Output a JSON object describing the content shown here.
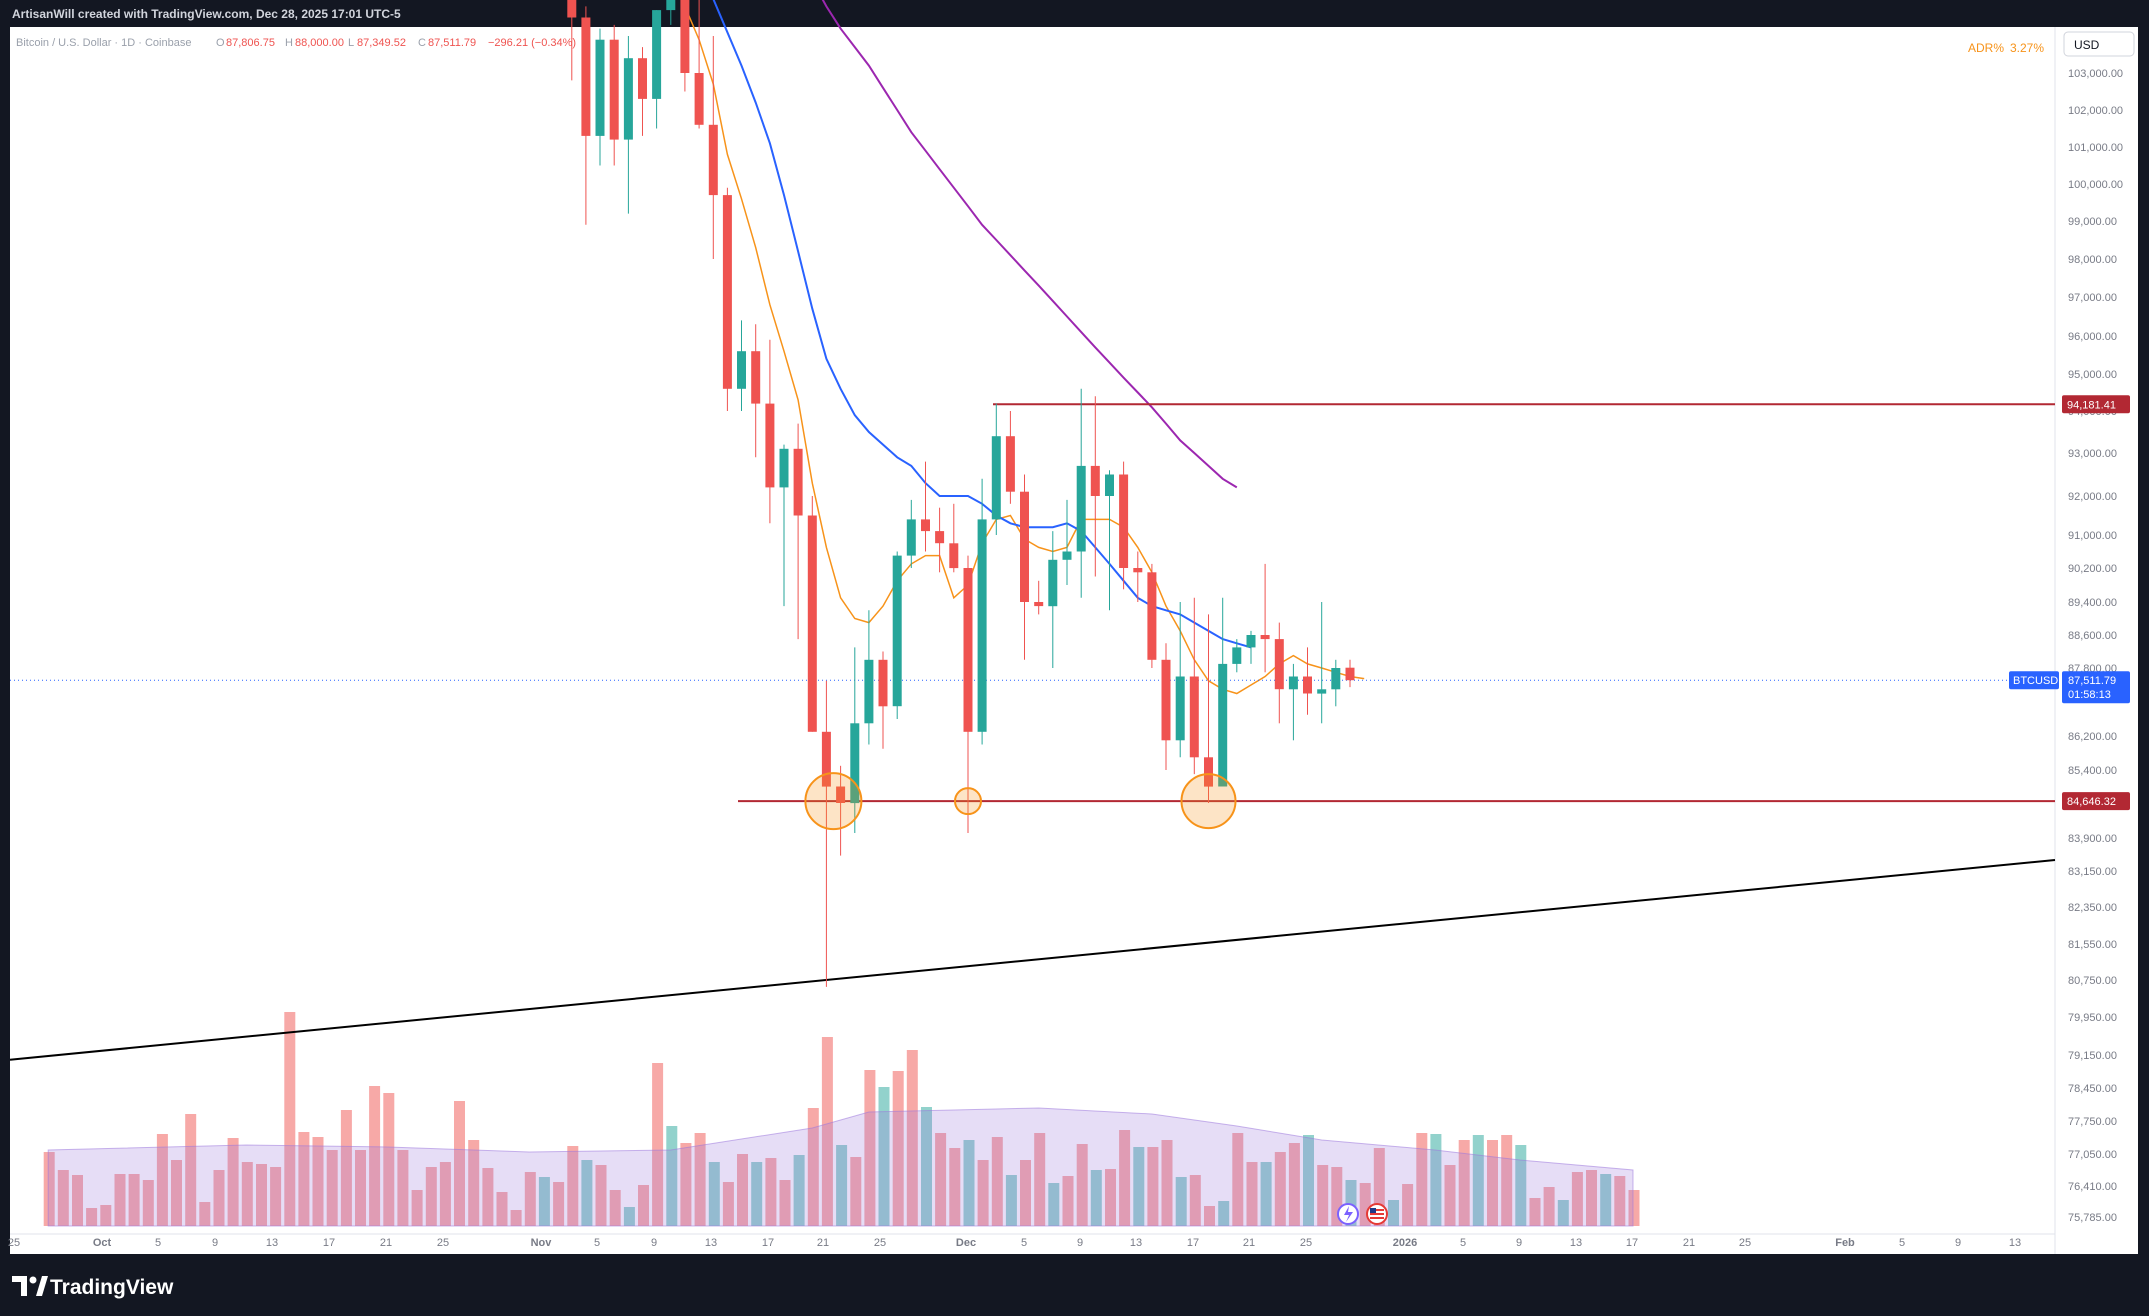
{
  "header": {
    "credit": "ArtisanWill created with TradingView.com, Dec 28, 2025 17:01 UTC-5"
  },
  "legend": {
    "symbol": "Bitcoin / U.S. Dollar · 1D · Coinbase",
    "open": "87,806.75",
    "high": "88,000.00",
    "low": "87,349.52",
    "close": "87,511.79",
    "change": "−296.21 (−0.34%)"
  },
  "indicator": {
    "name": "ADR%",
    "value": "3.27%"
  },
  "currency": "USD",
  "footer": {
    "brand": "TradingView"
  },
  "price_tags": {
    "resistance": "94,181.41",
    "support": "84,646.32",
    "symbol": "BTCUSD",
    "last": "87,511.79",
    "countdown": "01:58:13"
  },
  "colors": {
    "up": "#26a69a",
    "down": "#ef5350",
    "ema_fast": "#f7931a",
    "ema_mid": "#2962ff",
    "ema_slow": "#9c27b0",
    "level_line": "#b22833",
    "trend_line": "#000000",
    "marker": "#f7931a"
  },
  "chart_data": {
    "type": "candlestick",
    "title": "Bitcoin / U.S. Dollar · 1D · Coinbase",
    "y_axis_ticks": [
      "103,000.00",
      "102,000.00",
      "101,000.00",
      "100,000.00",
      "99,000.00",
      "98,000.00",
      "97,000.00",
      "96,000.00",
      "95,000.00",
      "94,000.00",
      "93,000.00",
      "92,000.00",
      "91,000.00",
      "90,200.00",
      "89,400.00",
      "88,600.00",
      "87,800.00",
      "86,200.00",
      "85,400.00",
      "84,600.00",
      "83,900.00",
      "83,150.00",
      "82,350.00",
      "81,550.00",
      "80,750.00",
      "79,950.00",
      "79,150.00",
      "78,450.00",
      "77,750.00",
      "77,050.00",
      "76,410.00",
      "75,785.00"
    ],
    "x_axis_ticks": [
      "25",
      "Oct",
      "5",
      "9",
      "13",
      "17",
      "21",
      "25",
      "Nov",
      "5",
      "9",
      "13",
      "17",
      "21",
      "25",
      "Dec",
      "5",
      "9",
      "13",
      "17",
      "21",
      "25",
      "2026",
      "5",
      "9",
      "13",
      "17",
      "21",
      "25",
      "Feb",
      "5",
      "9",
      "13"
    ],
    "candles": [
      {
        "date": "Nov 3",
        "o": 107500,
        "h": 108200,
        "l": 102800,
        "c": 104500
      },
      {
        "date": "Nov 4",
        "o": 104500,
        "h": 104800,
        "l": 98900,
        "c": 101300
      },
      {
        "date": "Nov 5",
        "o": 101300,
        "h": 104200,
        "l": 100500,
        "c": 103900
      },
      {
        "date": "Nov 6",
        "o": 103900,
        "h": 104300,
        "l": 100500,
        "c": 101200
      },
      {
        "date": "Nov 7",
        "o": 101200,
        "h": 104000,
        "l": 99200,
        "c": 103400
      },
      {
        "date": "Nov 8",
        "o": 103400,
        "h": 103700,
        "l": 101300,
        "c": 102300
      },
      {
        "date": "Nov 9",
        "o": 102300,
        "h": 104700,
        "l": 101500,
        "c": 104700
      },
      {
        "date": "Nov 10",
        "o": 104700,
        "h": 106600,
        "l": 104300,
        "c": 106000
      },
      {
        "date": "Nov 11",
        "o": 106000,
        "h": 107000,
        "l": 102500,
        "c": 103000
      },
      {
        "date": "Nov 12",
        "o": 103000,
        "h": 105300,
        "l": 101500,
        "c": 101600
      },
      {
        "date": "Nov 13",
        "o": 101600,
        "h": 104000,
        "l": 98000,
        "c": 99700
      },
      {
        "date": "Nov 14",
        "o": 99700,
        "h": 99900,
        "l": 94000,
        "c": 94600
      },
      {
        "date": "Nov 15",
        "o": 94600,
        "h": 96400,
        "l": 94000,
        "c": 95600
      },
      {
        "date": "Nov 16",
        "o": 95600,
        "h": 96300,
        "l": 92900,
        "c": 94200
      },
      {
        "date": "Nov 17",
        "o": 94200,
        "h": 95900,
        "l": 91300,
        "c": 92200
      },
      {
        "date": "Nov 18",
        "o": 92200,
        "h": 93200,
        "l": 89300,
        "c": 93100
      },
      {
        "date": "Nov 19",
        "o": 93100,
        "h": 93700,
        "l": 88500,
        "c": 91500
      },
      {
        "date": "Nov 20",
        "o": 91500,
        "h": 92000,
        "l": 86300,
        "c": 86300
      },
      {
        "date": "Nov 21",
        "o": 86300,
        "h": 87500,
        "l": 80600,
        "c": 85000
      },
      {
        "date": "Nov 22",
        "o": 85000,
        "h": 85500,
        "l": 83500,
        "c": 84600
      },
      {
        "date": "Nov 23",
        "o": 84600,
        "h": 88300,
        "l": 84000,
        "c": 86500
      },
      {
        "date": "Nov 24",
        "o": 86500,
        "h": 89200,
        "l": 86000,
        "c": 88000
      },
      {
        "date": "Nov 25",
        "o": 88000,
        "h": 88200,
        "l": 85900,
        "c": 86900
      },
      {
        "date": "Nov 26",
        "o": 86900,
        "h": 90600,
        "l": 86600,
        "c": 90500
      },
      {
        "date": "Nov 27",
        "o": 90500,
        "h": 91900,
        "l": 90200,
        "c": 91400
      },
      {
        "date": "Nov 28",
        "o": 91400,
        "h": 92800,
        "l": 90600,
        "c": 91100
      },
      {
        "date": "Nov 29",
        "o": 91100,
        "h": 91700,
        "l": 90100,
        "c": 90800
      },
      {
        "date": "Nov 30",
        "o": 90800,
        "h": 91800,
        "l": 90100,
        "c": 90200
      },
      {
        "date": "Dec 1",
        "o": 90200,
        "h": 90500,
        "l": 84000,
        "c": 86300
      },
      {
        "date": "Dec 2",
        "o": 86300,
        "h": 92400,
        "l": 86000,
        "c": 91400
      },
      {
        "date": "Dec 3",
        "o": 91400,
        "h": 94200,
        "l": 91000,
        "c": 93400
      },
      {
        "date": "Dec 4",
        "o": 93400,
        "h": 94000,
        "l": 91800,
        "c": 92100
      },
      {
        "date": "Dec 5",
        "o": 92100,
        "h": 92500,
        "l": 88000,
        "c": 89400
      },
      {
        "date": "Dec 6",
        "o": 89400,
        "h": 89900,
        "l": 89100,
        "c": 89300
      },
      {
        "date": "Dec 7",
        "o": 89300,
        "h": 91100,
        "l": 87800,
        "c": 90400
      },
      {
        "date": "Dec 8",
        "o": 90400,
        "h": 91900,
        "l": 89800,
        "c": 90600
      },
      {
        "date": "Dec 9",
        "o": 90600,
        "h": 94600,
        "l": 89500,
        "c": 92700
      },
      {
        "date": "Dec 10",
        "o": 92700,
        "h": 94400,
        "l": 90000,
        "c": 92000
      },
      {
        "date": "Dec 11",
        "o": 92000,
        "h": 92600,
        "l": 89200,
        "c": 92500
      },
      {
        "date": "Dec 12",
        "o": 92500,
        "h": 92800,
        "l": 89700,
        "c": 90200
      },
      {
        "date": "Dec 13",
        "o": 90200,
        "h": 90600,
        "l": 89400,
        "c": 90100
      },
      {
        "date": "Dec 14",
        "o": 90100,
        "h": 90300,
        "l": 87800,
        "c": 88000
      },
      {
        "date": "Dec 15",
        "o": 88000,
        "h": 88400,
        "l": 85400,
        "c": 86100
      },
      {
        "date": "Dec 16",
        "o": 86100,
        "h": 89400,
        "l": 85700,
        "c": 87600
      },
      {
        "date": "Dec 17",
        "o": 87600,
        "h": 89500,
        "l": 85300,
        "c": 85700
      },
      {
        "date": "Dec 18",
        "o": 85700,
        "h": 89100,
        "l": 84600,
        "c": 85000
      },
      {
        "date": "Dec 19",
        "o": 85000,
        "h": 89500,
        "l": 85000,
        "c": 87900
      },
      {
        "date": "Dec 20",
        "o": 87900,
        "h": 88500,
        "l": 87700,
        "c": 88300
      },
      {
        "date": "Dec 21",
        "o": 88300,
        "h": 88700,
        "l": 87900,
        "c": 88600
      },
      {
        "date": "Dec 22",
        "o": 88600,
        "h": 90300,
        "l": 87700,
        "c": 88500
      },
      {
        "date": "Dec 23",
        "o": 88500,
        "h": 88900,
        "l": 86500,
        "c": 87300
      },
      {
        "date": "Dec 24",
        "o": 87300,
        "h": 87900,
        "l": 86100,
        "c": 87600
      },
      {
        "date": "Dec 25",
        "o": 87600,
        "h": 88300,
        "l": 86700,
        "c": 87200
      },
      {
        "date": "Dec 26",
        "o": 87200,
        "h": 89400,
        "l": 86500,
        "c": 87300
      },
      {
        "date": "Dec 27",
        "o": 87300,
        "h": 88000,
        "l": 86900,
        "c": 87800
      },
      {
        "date": "Dec 28",
        "o": 87806.75,
        "h": 88000,
        "l": 87349.52,
        "c": 87511.79
      }
    ],
    "levels": {
      "resistance": 94181.41,
      "support": 84646.32,
      "last": 87511.79
    },
    "trendline": {
      "from_price": 79050,
      "to_price": 83400
    },
    "moving_averages": [
      {
        "color": "ema_fast",
        "values_from": "Nov 11",
        "values": [
          104800,
          103900,
          102700,
          100800,
          99600,
          98300,
          96800,
          95600,
          94300,
          92300,
          90700,
          89500,
          89000,
          88900,
          89300,
          89900,
          90300,
          90500,
          90500,
          89500,
          89800,
          90800,
          91400,
          91500,
          90900,
          90700,
          90600,
          90700,
          91400,
          91400,
          91400,
          91200,
          90700,
          90100,
          89300,
          88700,
          88000,
          87500,
          87300,
          87200,
          87400,
          87600,
          87900,
          88100,
          87900,
          87800,
          87700,
          87600,
          87550
        ]
      },
      {
        "color": "ema_mid",
        "values_from": "Nov 13",
        "values": [
          105000,
          104100,
          103200,
          102200,
          101100,
          99700,
          98200,
          96700,
          95400,
          94600,
          93900,
          93500,
          93200,
          92900,
          92700,
          92300,
          92000,
          92000,
          92000,
          91800,
          91500,
          91300,
          91200,
          91200,
          91200,
          91300,
          91100,
          90700,
          90300,
          89900,
          89500,
          89300,
          89200,
          89100,
          88900,
          88700,
          88500,
          88400,
          88300
        ]
      },
      {
        "color": "ema_slow",
        "values_from": "Nov 20",
        "values": [
          105500,
          104800,
          104200,
          103700,
          103200,
          102600,
          102000,
          101400,
          100900,
          100400,
          99900,
          99400,
          98900,
          98500,
          98100,
          97700,
          97300,
          96900,
          96500,
          96100,
          95700,
          95300,
          94900,
          94500,
          94100,
          93700,
          93300,
          93000,
          92700,
          92400,
          92200
        ]
      }
    ],
    "volume_ma_note": "",
    "markers": [
      {
        "date": "Nov 21",
        "price": 84646.32
      },
      {
        "date": "Dec 1",
        "price": 84646.32
      },
      {
        "date": "Dec 18",
        "price": 84646.32
      }
    ]
  }
}
